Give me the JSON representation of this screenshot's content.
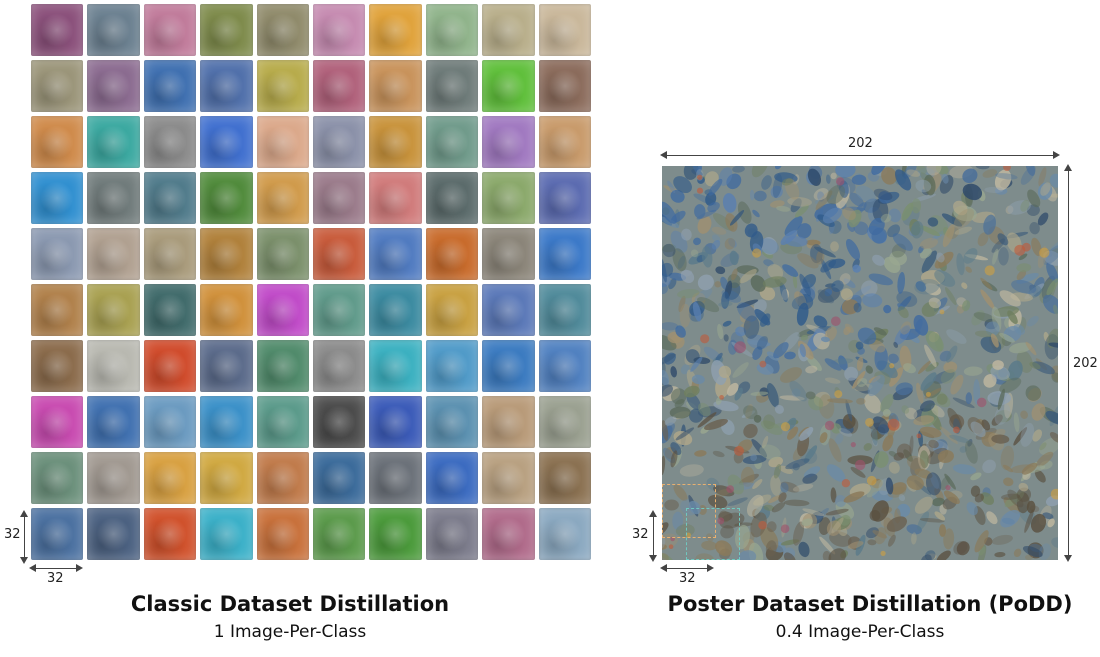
{
  "left_panel": {
    "title": "Classic Dataset Distillation",
    "subtitle": "1 Image-Per-Class",
    "tile_height_label": "32",
    "tile_width_label": "32",
    "tiles": [
      "#8a4f7a",
      "#6a7f8f",
      "#c07a9a",
      "#7d8a4a",
      "#8f8a6a",
      "#c58ab0",
      "#e0a23a",
      "#8fb38a",
      "#b8ae8a",
      "#c9b79a",
      "#9a9478",
      "#8a6a8f",
      "#3e6fb0",
      "#4f6faa",
      "#b7ab4a",
      "#b0607a",
      "#c8925a",
      "#6d7a78",
      "#5fbf3a",
      "#8a6a5a",
      "#cf8a4a",
      "#3aa8a0",
      "#8a8a8a",
      "#3f6fcf",
      "#dba88a",
      "#8a90a8",
      "#c8923a",
      "#6f9a8a",
      "#a078c0",
      "#c89a6a",
      "#2f8fd0",
      "#6f7a7a",
      "#4f7a8a",
      "#4f8a3a",
      "#d09a4a",
      "#9a7a8a",
      "#d07a7a",
      "#5a6a6a",
      "#8aa86a",
      "#5a6ab0",
      "#8a98b0",
      "#b0a090",
      "#a89a7a",
      "#b0803a",
      "#7a8f6a",
      "#c85a3a",
      "#4f7ac0",
      "#c86a2a",
      "#8a8478",
      "#3a78c8",
      "#b0804a",
      "#a8a050",
      "#3f6a6a",
      "#d0903a",
      "#c04ac8",
      "#5f9a8a",
      "#3a8aa0",
      "#c8a040",
      "#5a78b8",
      "#4f8a9a",
      "#8a6a4a",
      "#b8b8b0",
      "#d04a2a",
      "#5a6a8a",
      "#4f8a6a",
      "#8a8a8a",
      "#3ab0c0",
      "#4f9ac8",
      "#3a7ac0",
      "#4f80c0",
      "#c84ab0",
      "#3f70b0",
      "#6a9ac0",
      "#3a90c8",
      "#5a9a8a",
      "#4a4a4a",
      "#3a5ab8",
      "#5a90b0",
      "#b89a78",
      "#9aa090",
      "#6a8f7a",
      "#a09890",
      "#d8a040",
      "#d0a840",
      "#c07a4a",
      "#3a6a9a",
      "#6a7078",
      "#3a6ac0",
      "#b8a080",
      "#8a7050",
      "#4a70a0",
      "#4a6080",
      "#d0502a",
      "#3ab0c8",
      "#c8703a",
      "#5a9a4a",
      "#4a9a3a",
      "#7a7a8a",
      "#b06a8a",
      "#8aa8c0"
    ]
  },
  "right_panel": {
    "title": "Poster Dataset Distillation (PoDD)",
    "subtitle": "0.4 Image-Per-Class",
    "poster_width_label": "202",
    "poster_height_label": "202",
    "patch_height_label": "32",
    "patch_width_label": "32",
    "dash_colors": [
      "#e8b070",
      "#70c8c0"
    ]
  }
}
